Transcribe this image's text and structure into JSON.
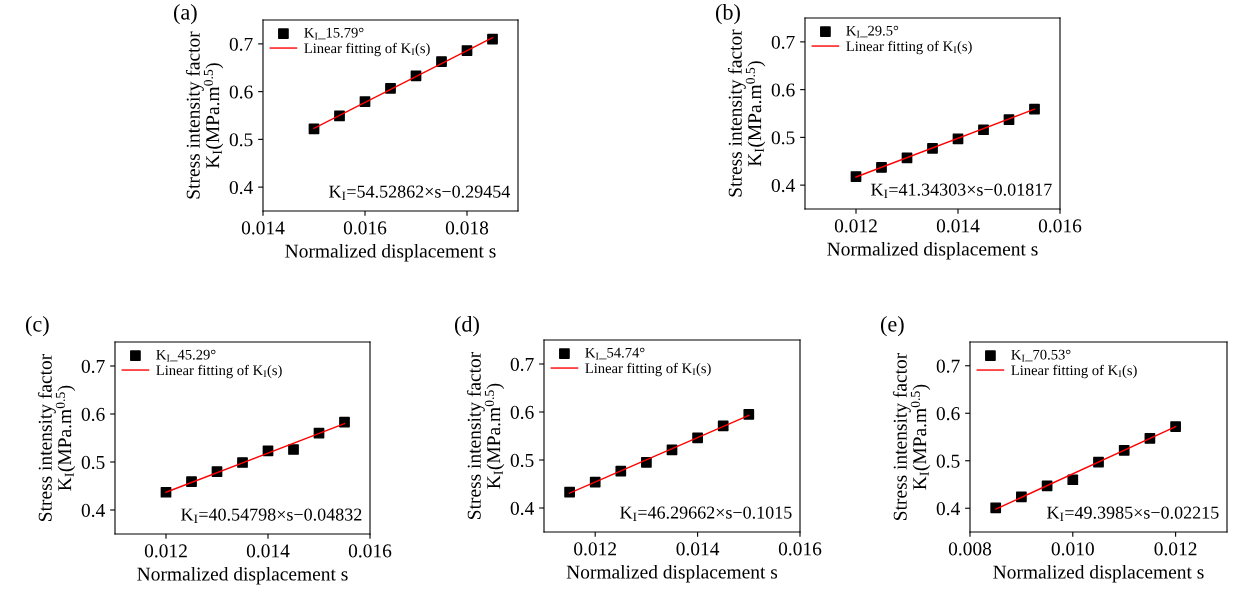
{
  "chart_data": [
    {
      "type": "scatter",
      "title": "(a)",
      "xlabel": "Normalized displacement s",
      "ylabel": "Stress intensity factor\nK$_{I}$(MPa.m$^{0.5}$)",
      "xlim": [
        0.014,
        0.019
      ],
      "xticks": [
        0.014,
        0.016,
        0.018
      ],
      "ylim": [
        0.35,
        0.75
      ],
      "yticks": [
        0.4,
        0.5,
        0.6,
        0.7
      ],
      "legend": "top left",
      "grid": false,
      "annotations": [
        "K$_{I}$=54.52862×s−0.29454"
      ],
      "x": [
        0.015,
        0.0155,
        0.016,
        0.0165,
        0.017,
        0.0175,
        0.018,
        0.0185
      ],
      "series": [
        {
          "name": "K$_{I}$_15.79°",
          "marker": "square",
          "color": "#000000",
          "values": [
            0.522,
            0.549,
            0.579,
            0.607,
            0.633,
            0.663,
            0.686,
            0.71
          ]
        },
        {
          "name": "Linear fitting of K$_{I}$(s)",
          "type": "line",
          "line_style": "solid",
          "color": "#ff0000",
          "x": [
            0.015,
            0.0185
          ],
          "values": [
            0.523,
            0.713
          ]
        }
      ]
    },
    {
      "type": "scatter",
      "title": "(b)",
      "xlabel": "Normalized displacement s",
      "ylabel": "Stress intensity factor\nK$_{I}$(MPa.m$^{0.5}$)",
      "xlim": [
        0.011,
        0.016
      ],
      "xticks": [
        0.012,
        0.014,
        0.016
      ],
      "ylim": [
        0.35,
        0.75
      ],
      "yticks": [
        0.4,
        0.5,
        0.6,
        0.7
      ],
      "legend": "top left",
      "grid": false,
      "annotations": [
        "K$_{I}$=41.34303×s−0.01817"
      ],
      "x": [
        0.012,
        0.0125,
        0.013,
        0.0135,
        0.014,
        0.0145,
        0.015,
        0.0155
      ],
      "series": [
        {
          "name": "K$_{I}$_29.5°",
          "marker": "square",
          "color": "#000000",
          "values": [
            0.418,
            0.437,
            0.457,
            0.477,
            0.497,
            0.516,
            0.537,
            0.559
          ]
        },
        {
          "name": "Linear fitting of K$_{I}$(s)",
          "type": "line",
          "line_style": "solid",
          "color": "#ff0000",
          "x": [
            0.012,
            0.0155
          ],
          "values": [
            0.417,
            0.559
          ]
        }
      ]
    },
    {
      "type": "scatter",
      "title": "(c)",
      "xlabel": "Normalized displacement s",
      "ylabel": "Stress intensity factor\nK$_{I}$(MPa.m$^{0.5}$)",
      "xlim": [
        0.011,
        0.016
      ],
      "xticks": [
        0.012,
        0.014,
        0.016
      ],
      "ylim": [
        0.35,
        0.75
      ],
      "yticks": [
        0.4,
        0.5,
        0.6,
        0.7
      ],
      "legend": "top left",
      "grid": false,
      "annotations": [
        "K$_{I}$=40.54798×s−0.04832"
      ],
      "x": [
        0.012,
        0.0125,
        0.013,
        0.0135,
        0.014,
        0.0145,
        0.015,
        0.0155
      ],
      "series": [
        {
          "name": "K$_{I}$_45.29°",
          "marker": "square",
          "color": "#000000",
          "values": [
            0.437,
            0.459,
            0.48,
            0.499,
            0.523,
            0.526,
            0.56,
            0.583
          ]
        },
        {
          "name": "Linear fitting of K$_{I}$(s)",
          "type": "line",
          "line_style": "solid",
          "color": "#ff0000",
          "x": [
            0.012,
            0.0155
          ],
          "values": [
            0.437,
            0.58
          ]
        }
      ]
    },
    {
      "type": "scatter",
      "title": "(d)",
      "xlabel": "Normalized displacement s",
      "ylabel": "Stress intensity factor\nK$_{I}$(MPa.m$^{0.5}$)",
      "xlim": [
        0.011,
        0.016
      ],
      "xticks": [
        0.012,
        0.014,
        0.016
      ],
      "ylim": [
        0.35,
        0.75
      ],
      "yticks": [
        0.4,
        0.5,
        0.6,
        0.7
      ],
      "legend": "top left",
      "grid": false,
      "annotations": [
        "K$_{I}$=46.29662×s−0.1015"
      ],
      "x": [
        0.0115,
        0.012,
        0.0125,
        0.013,
        0.0135,
        0.014,
        0.0145,
        0.015
      ],
      "series": [
        {
          "name": "K$_{I}$_54.74°",
          "marker": "square",
          "color": "#000000",
          "values": [
            0.433,
            0.454,
            0.477,
            0.495,
            0.521,
            0.546,
            0.571,
            0.595
          ]
        },
        {
          "name": "Linear fitting of K$_{I}$(s)",
          "type": "line",
          "line_style": "solid",
          "color": "#ff0000",
          "x": [
            0.0115,
            0.015
          ],
          "values": [
            0.431,
            0.593
          ]
        }
      ]
    },
    {
      "type": "scatter",
      "title": "(e)",
      "xlabel": "Normalized displacement s",
      "ylabel": "Stress intensity factor\nK$_{I}$(MPa.m$^{0.5}$)",
      "xlim": [
        0.008,
        0.013
      ],
      "xticks": [
        0.008,
        {
          "value": 0.01,
          "label": "0.010"
        },
        0.012
      ],
      "ylim": [
        0.35,
        0.75
      ],
      "yticks": [
        0.4,
        0.5,
        0.6,
        0.7
      ],
      "legend": "top left",
      "grid": false,
      "annotations": [
        "K$_{I}$=49.3985×s−0.02215"
      ],
      "x": [
        0.0085,
        0.009,
        0.0095,
        0.01,
        0.0105,
        0.011,
        0.0115,
        0.012
      ],
      "series": [
        {
          "name": "K$_{I}$_70.53°",
          "marker": "square",
          "color": "#000000",
          "values": [
            0.401,
            0.424,
            0.447,
            0.46,
            0.497,
            0.522,
            0.547,
            0.572
          ]
        },
        {
          "name": "Linear fitting of K$_{I}$(s)",
          "type": "line",
          "line_style": "solid",
          "color": "#ff0000",
          "x": [
            0.0085,
            0.012
          ],
          "values": [
            0.398,
            0.572
          ]
        }
      ]
    }
  ]
}
